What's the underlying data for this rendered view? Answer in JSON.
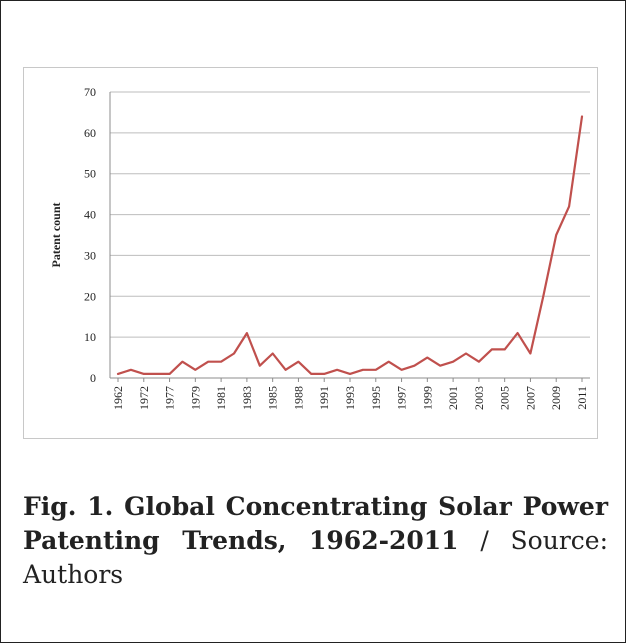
{
  "caption": {
    "title": "Fig. 1. Global Concentrating Solar Power Patenting Trends, 1962-2011",
    "separator": " / ",
    "source": "Source: Authors"
  },
  "chart_data": {
    "type": "line",
    "title": "",
    "xlabel": "",
    "ylabel": "Patent count",
    "ylim": [
      0,
      70
    ],
    "yticks": [
      0,
      10,
      20,
      30,
      40,
      50,
      60,
      70
    ],
    "grid": true,
    "line_color": "#c0504d",
    "x": [
      "1962",
      "1965",
      "1972",
      "1975",
      "1977",
      "1978",
      "1979",
      "1980",
      "1981",
      "1982",
      "1983",
      "1984",
      "1985",
      "1986",
      "1988",
      "1990",
      "1991",
      "1992",
      "1993",
      "1994",
      "1995",
      "1996",
      "1997",
      "1998",
      "1999",
      "2000",
      "2001",
      "2002",
      "2003",
      "2004",
      "2005",
      "2006",
      "2007",
      "2008",
      "2009",
      "2010",
      "2011"
    ],
    "xtick_labels": [
      "1962",
      "1972",
      "1977",
      "1979",
      "1981",
      "1983",
      "1985",
      "1988",
      "1991",
      "1993",
      "1995",
      "1997",
      "1999",
      "2001",
      "2003",
      "2005",
      "2007",
      "2009",
      "2011"
    ],
    "series": [
      {
        "name": "",
        "values": [
          1,
          2,
          1,
          1,
          1,
          4,
          2,
          4,
          4,
          6,
          11,
          3,
          6,
          2,
          4,
          1,
          1,
          2,
          1,
          2,
          2,
          4,
          2,
          3,
          5,
          3,
          4,
          6,
          4,
          7,
          7,
          11,
          6,
          20,
          35,
          42,
          64
        ]
      }
    ]
  }
}
